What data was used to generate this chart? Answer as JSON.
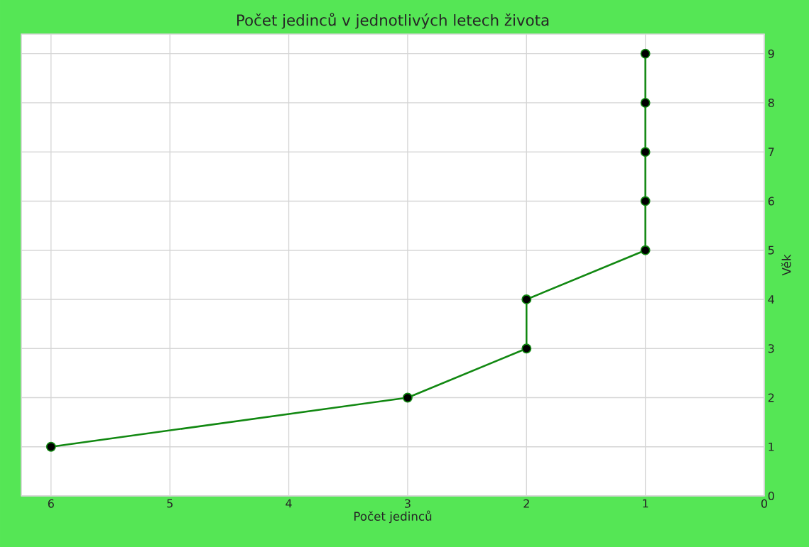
{
  "chart_data": {
    "type": "line",
    "title": "Počet jedinců v jednotlivých letech života",
    "xlabel": "Počet jedinců",
    "ylabel": "Věk",
    "series": [
      {
        "color": "#118811",
        "x": [
          6,
          3,
          2,
          2,
          1,
          1,
          1,
          1,
          1
        ],
        "values": [
          1,
          2,
          3,
          4,
          5,
          6,
          7,
          8,
          9
        ]
      }
    ],
    "xlim": [
      6.25,
      0
    ],
    "ylim": [
      0,
      9.4
    ],
    "xticks": [
      0,
      1,
      2,
      3,
      4,
      5,
      6
    ],
    "yticks": [
      0,
      1,
      2,
      3,
      4,
      5,
      6,
      7,
      8,
      9
    ],
    "grid": true,
    "marker": "circle"
  }
}
